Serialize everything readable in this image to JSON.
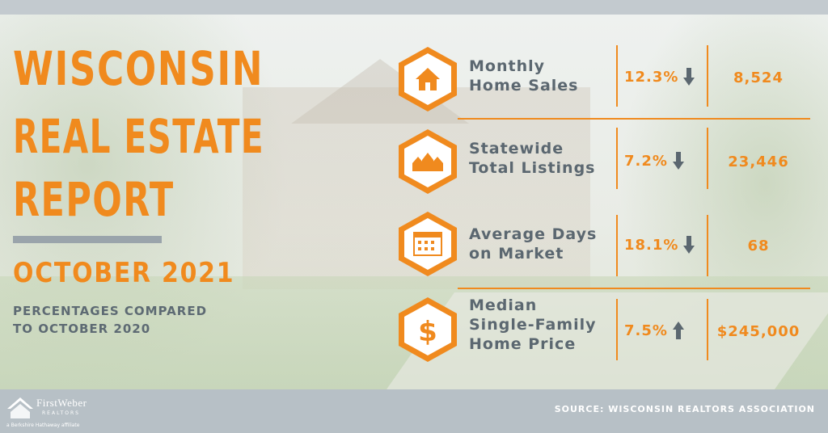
{
  "title": {
    "line1": "WISCONSIN",
    "line2": "REAL ESTATE",
    "line3": "REPORT",
    "period": "OCTOBER 2021",
    "comparison_line1": "PERCENTAGES COMPARED",
    "comparison_line2": "TO OCTOBER 2020"
  },
  "metrics": [
    {
      "label_line1": "Monthly",
      "label_line2": "Home Sales",
      "label_line3": "",
      "icon": "house-icon",
      "change": "12.3%",
      "direction": "down",
      "value": "8,524"
    },
    {
      "label_line1": "Statewide",
      "label_line2": "Total Listings",
      "label_line3": "",
      "icon": "houses-icon",
      "change": "7.2%",
      "direction": "down",
      "value": "23,446"
    },
    {
      "label_line1": "Average Days",
      "label_line2": "on Market",
      "label_line3": "",
      "icon": "calendar-icon",
      "change": "18.1%",
      "direction": "down",
      "value": "68"
    },
    {
      "label_line1": "Median",
      "label_line2": "Single-Family",
      "label_line3": "Home Price",
      "icon": "dollar-icon",
      "change": "7.5%",
      "direction": "up",
      "value": "$245,000"
    }
  ],
  "footer": {
    "logo_name": "FirstWeber",
    "logo_sub": "REALTORS",
    "logo_affiliate": "a Berkshire Hathaway affiliate",
    "source": "SOURCE: WISCONSIN REALTORS ASSOCIATION"
  },
  "colors": {
    "accent": "#f08a1e",
    "text_gray": "#5b6770",
    "bar_gray": "#b7c0c6"
  }
}
